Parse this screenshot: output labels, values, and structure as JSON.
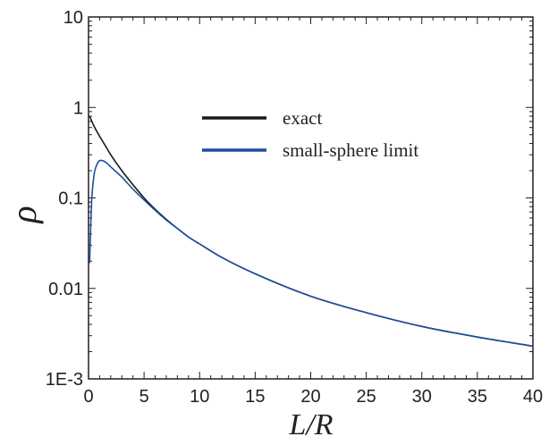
{
  "chart_data": {
    "type": "line",
    "title": "",
    "xlabel": "L/R",
    "ylabel": "ρ",
    "xlim": [
      0,
      40
    ],
    "ylim": [
      0.001,
      10
    ],
    "y_scale": "log",
    "grid": false,
    "legend_position": "top-center",
    "x_tick_labels": [
      "0",
      "5",
      "10",
      "15",
      "20",
      "25",
      "30",
      "35",
      "40"
    ],
    "y_tick_labels": [
      "1E-3",
      "0.01",
      "0.1",
      "1",
      "10"
    ],
    "series": [
      {
        "name": "exact",
        "color": "#1a1a1a",
        "x": [
          0.1,
          0.5,
          1,
          1.5,
          2,
          3,
          4,
          5,
          6,
          7,
          8,
          9,
          10,
          12,
          15,
          20,
          25,
          30,
          35,
          40
        ],
        "y": [
          0.8,
          0.62,
          0.48,
          0.38,
          0.3,
          0.2,
          0.14,
          0.1,
          0.075,
          0.058,
          0.046,
          0.037,
          0.031,
          0.022,
          0.0145,
          0.0082,
          0.0054,
          0.0038,
          0.0029,
          0.0023
        ]
      },
      {
        "name": "small-sphere limit",
        "color": "#1d4fa0",
        "x": [
          0.1,
          0.2,
          0.3,
          0.5,
          0.8,
          1.1,
          1.5,
          2,
          3,
          4,
          5,
          6,
          7,
          8,
          9,
          10,
          12,
          15,
          20,
          25,
          30,
          35,
          40
        ],
        "y": [
          0.019,
          0.05,
          0.1,
          0.18,
          0.24,
          0.26,
          0.25,
          0.22,
          0.17,
          0.125,
          0.095,
          0.073,
          0.057,
          0.046,
          0.037,
          0.031,
          0.022,
          0.0145,
          0.0082,
          0.0054,
          0.0038,
          0.0029,
          0.0023
        ]
      }
    ]
  }
}
